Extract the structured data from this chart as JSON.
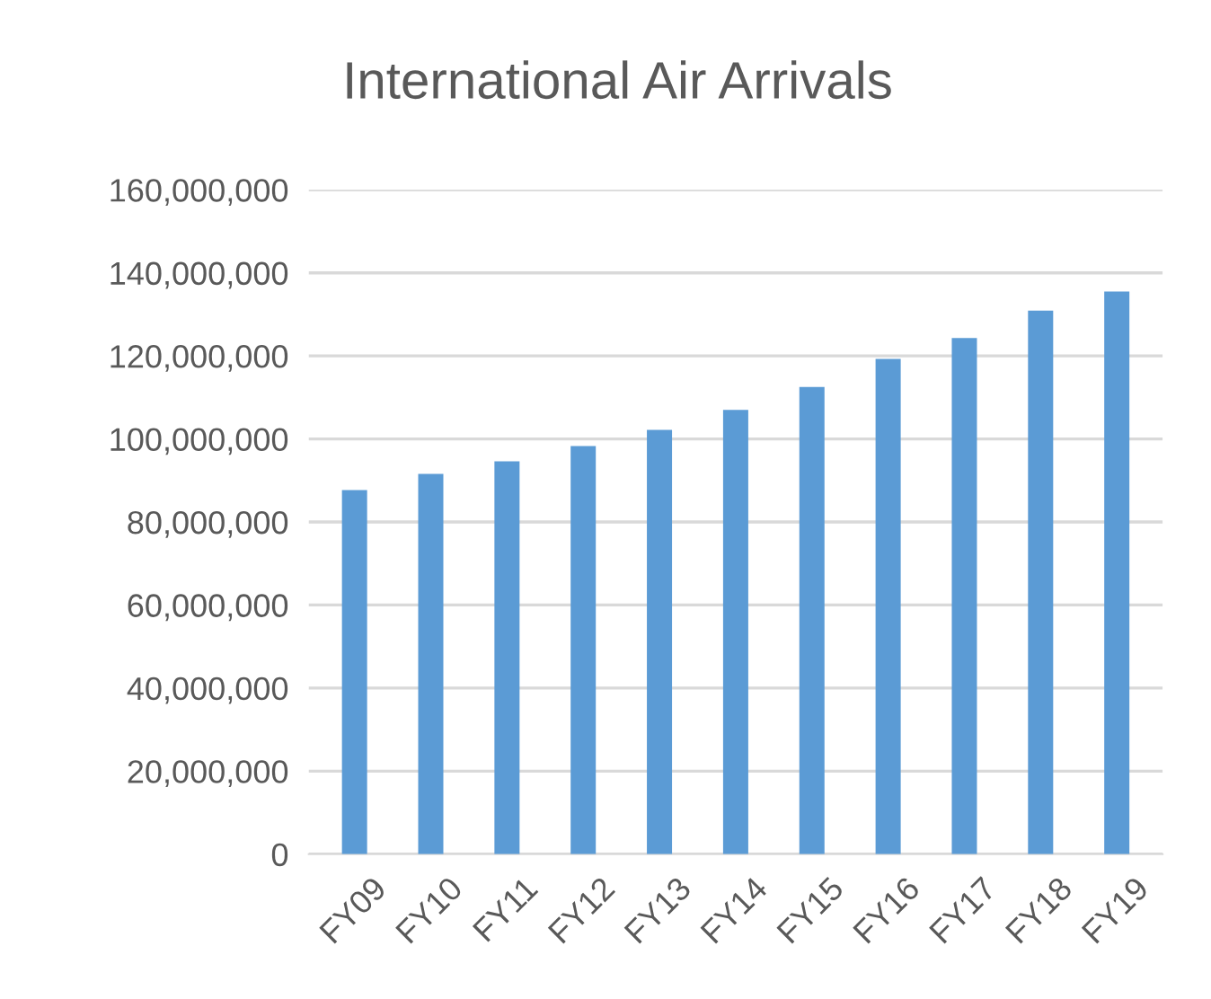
{
  "chart_data": {
    "type": "bar",
    "title": "International Air Arrivals",
    "categories": [
      "FY09",
      "FY10",
      "FY11",
      "FY12",
      "FY13",
      "FY14",
      "FY15",
      "FY16",
      "FY17",
      "FY18",
      "FY19"
    ],
    "values": [
      87700000,
      91600000,
      94600000,
      98300000,
      102200000,
      107000000,
      112500000,
      119300000,
      124300000,
      130900000,
      135500000
    ],
    "color": "#5b9bd5",
    "ylim": [
      0,
      160000000
    ],
    "yticks": [
      {
        "value": 0,
        "label": "0"
      },
      {
        "value": 20000000,
        "label": "20,000,000"
      },
      {
        "value": 40000000,
        "label": "40,000,000"
      },
      {
        "value": 60000000,
        "label": "60,000,000"
      },
      {
        "value": 80000000,
        "label": "80,000,000"
      },
      {
        "value": 100000000,
        "label": "100,000,000"
      },
      {
        "value": 120000000,
        "label": "120,000,000"
      },
      {
        "value": 140000000,
        "label": "140,000,000"
      },
      {
        "value": 160000000,
        "label": "160,000,000"
      }
    ],
    "grid": "y"
  }
}
